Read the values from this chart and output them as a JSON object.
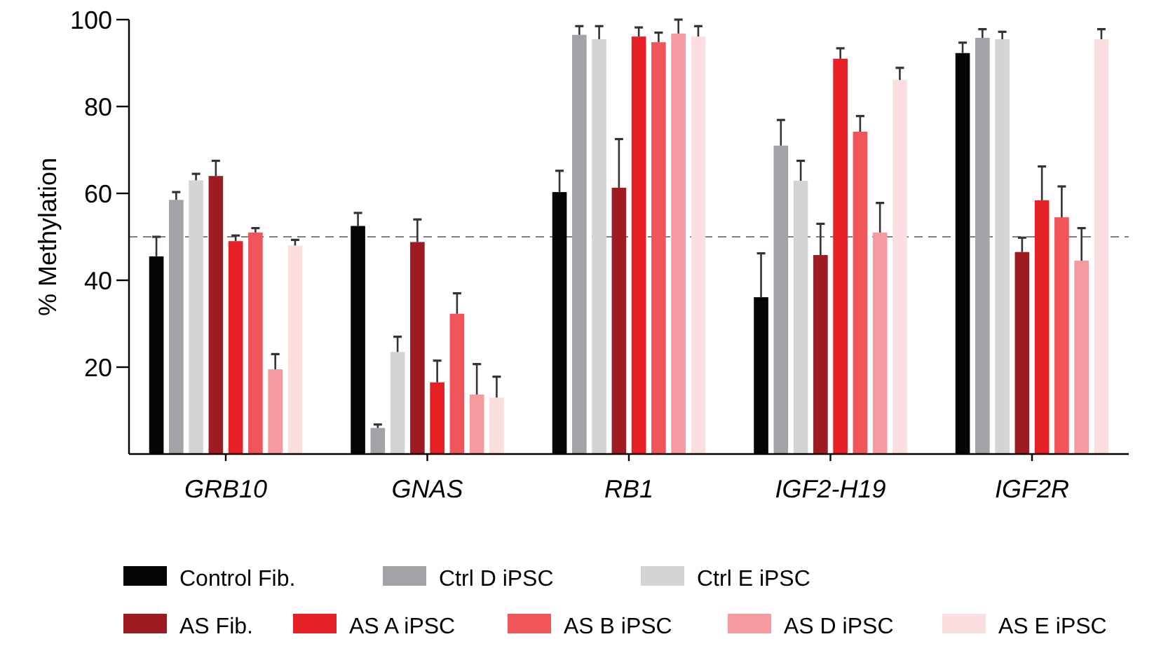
{
  "chart_data": {
    "type": "bar",
    "ylabel": "% Methylation",
    "categories": [
      "GRB10",
      "GNAS",
      "RB1",
      "IGF2-H19",
      "IGF2R"
    ],
    "ylim": [
      0,
      100
    ],
    "yticks": [
      20,
      40,
      60,
      80,
      100
    ],
    "grid": false,
    "legend": "bottom",
    "ref_lines": [
      {
        "axis": "y",
        "value": 50,
        "line_style": "dashed",
        "color": "#808080"
      }
    ],
    "series": [
      {
        "name": "Control Fib.",
        "color": "#050505",
        "values": [
          45.5,
          52.5,
          60.3,
          36.1,
          92.3
        ],
        "errors": [
          4.5,
          3,
          4.9,
          10.1,
          2.4
        ]
      },
      {
        "name": "Ctrl D iPSC",
        "color": "#a2a3a6",
        "values": [
          58.5,
          6,
          96.5,
          71,
          95.8
        ],
        "errors": [
          1.8,
          0.8,
          2,
          5.9,
          2
        ]
      },
      {
        "name": "Ctrl E iPSC",
        "color": "#d4d4d4",
        "values": [
          63,
          23.5,
          95.5,
          62.9,
          95.5
        ],
        "errors": [
          1.5,
          3.5,
          3,
          4.6,
          1.7
        ]
      },
      {
        "name": "AS Fib.",
        "color": "#9e1b22",
        "values": [
          64,
          48.8,
          61.3,
          45.8,
          46.5
        ],
        "errors": [
          3.5,
          5.2,
          11.2,
          7.2,
          3.3
        ]
      },
      {
        "name": "AS A iPSC",
        "color": "#e62027",
        "values": [
          49,
          16.5,
          96.1,
          91,
          58.4
        ],
        "errors": [
          1.3,
          5,
          2.1,
          2.4,
          7.8
        ]
      },
      {
        "name": "AS B iPSC",
        "color": "#f0555a",
        "values": [
          51,
          32.3,
          94.8,
          74.2,
          54.5
        ],
        "errors": [
          1,
          4.7,
          2.2,
          3.6,
          7.1
        ]
      },
      {
        "name": "AS D iPSC",
        "color": "#f59a9e",
        "values": [
          19.5,
          13.7,
          96.8,
          51,
          44.5
        ],
        "errors": [
          3.5,
          7,
          3.2,
          6.8,
          7.5
        ]
      },
      {
        "name": "AS E iPSC",
        "color": "#fbdfe0",
        "values": [
          48,
          13,
          96.1,
          86.1,
          95.5
        ],
        "errors": [
          1.3,
          4.8,
          2.4,
          2.8,
          2.3
        ]
      }
    ]
  }
}
